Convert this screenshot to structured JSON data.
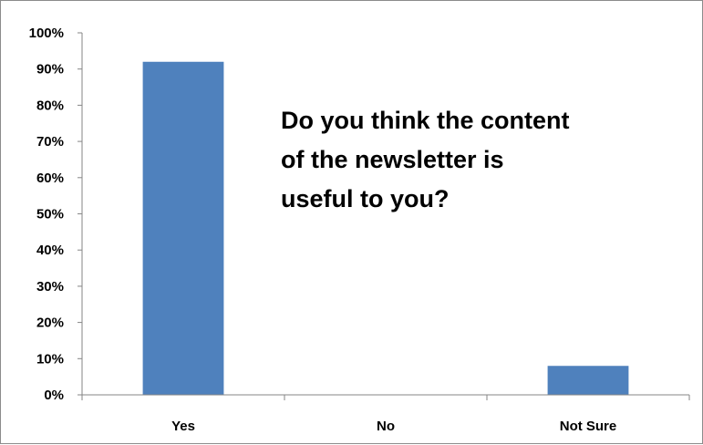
{
  "chart_data": {
    "type": "bar",
    "title_lines": [
      "Do you think the content",
      "of the newsletter is",
      "useful to you?"
    ],
    "categories": [
      "Yes",
      "No",
      "Not Sure"
    ],
    "values": [
      92,
      0,
      8
    ],
    "unit": "%",
    "ylim": [
      0,
      100
    ],
    "yticks": [
      "0%",
      "10%",
      "20%",
      "30%",
      "40%",
      "50%",
      "60%",
      "70%",
      "80%",
      "90%",
      "100%"
    ],
    "grid": false,
    "legend": "none",
    "bar_color": "#4f81bd",
    "axis_color": "#868686"
  }
}
